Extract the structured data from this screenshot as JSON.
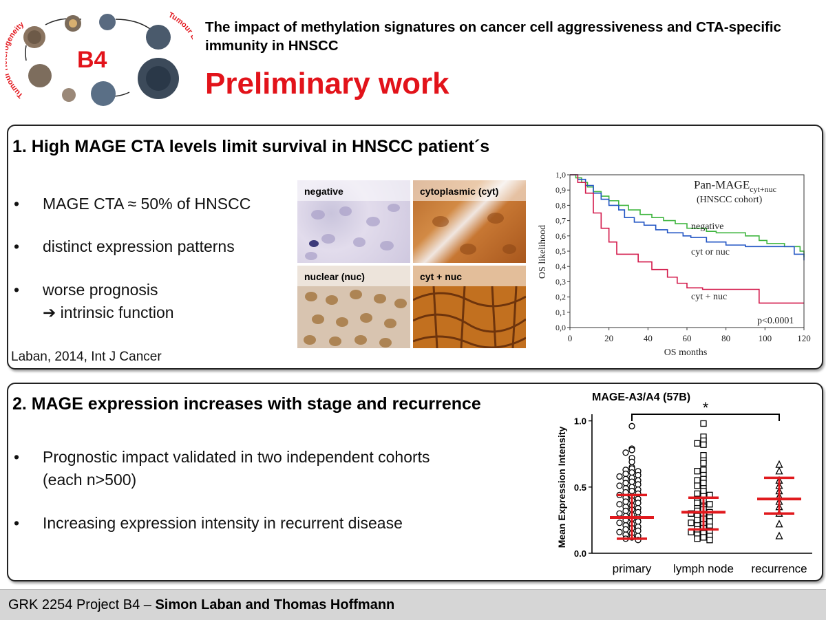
{
  "header": {
    "logo_text": "B4",
    "logo_arc_left": "Tumour Heterogeneity",
    "logo_arc_right": "Tumour Evolution",
    "subtitle": "The impact of methylation signatures on cancer cell aggressiveness and CTA-specific immunity in HNSCC",
    "title": "Preliminary work"
  },
  "section1": {
    "title": "1.  High MAGE CTA levels limit survival in HNSCC patient´s",
    "bullets": [
      "MAGE CTA ≈ 50% of HNSCC",
      "distinct expression patterns",
      "worse prognosis"
    ],
    "bullet_sub": "➔ intrinsic function",
    "bullet_marker": "•",
    "citation": "Laban, 2014, Int J Cancer",
    "ihc_labels": [
      "negative",
      "cytoplasmic (cyt)",
      "nuclear (nuc)",
      "cyt + nuc"
    ]
  },
  "section2": {
    "title": "2.  MAGE expression increases with stage and recurrence",
    "bullets": [
      "Prognostic impact validated in two independent cohorts",
      "Increasing expression intensity in recurrent disease"
    ],
    "bullet1_line2": "(each n>500)",
    "bullet_marker": "•"
  },
  "footer": {
    "project": "GRK 2254 Project B4 – ",
    "authors": "Simon Laban and Thomas Hoffmann"
  },
  "colors": {
    "title_red": "#e2131a",
    "negative": "#3fb53f",
    "cyt_or_nuc": "#2255c4",
    "cyt_nuc": "#d3184a",
    "error_bar": "#e0191d"
  },
  "chart_data": [
    {
      "type": "line",
      "title": "Pan-MAGE",
      "title_subscript": "cyt+nuc",
      "subtitle": "(HNSCC cohort)",
      "xlabel": "OS months",
      "ylabel": "OS likelihood",
      "xlim": [
        0,
        120
      ],
      "ylim": [
        0,
        1
      ],
      "xticks": [
        0,
        20,
        40,
        60,
        80,
        100,
        120
      ],
      "yticks": [
        "0,0",
        "0,1",
        "0,2",
        "0,3",
        "0,4",
        "0,5",
        "0,6",
        "0,7",
        "0,8",
        "0,9",
        "1,0"
      ],
      "annotation": "p<0.0001",
      "series": [
        {
          "name": "negative",
          "color": "#3fb53f",
          "points": [
            [
              0,
              1
            ],
            [
              3,
              0.98
            ],
            [
              6,
              0.95
            ],
            [
              9,
              0.92
            ],
            [
              12,
              0.89
            ],
            [
              16,
              0.86
            ],
            [
              20,
              0.83
            ],
            [
              25,
              0.8
            ],
            [
              30,
              0.77
            ],
            [
              36,
              0.74
            ],
            [
              42,
              0.72
            ],
            [
              48,
              0.7
            ],
            [
              54,
              0.68
            ],
            [
              60,
              0.65
            ],
            [
              70,
              0.63
            ],
            [
              75,
              0.62
            ],
            [
              90,
              0.6
            ],
            [
              97,
              0.57
            ],
            [
              101,
              0.55
            ],
            [
              110,
              0.53
            ],
            [
              118,
              0.5
            ],
            [
              120,
              0.46
            ]
          ]
        },
        {
          "name": "cyt or nuc",
          "color": "#2255c4",
          "points": [
            [
              0,
              1
            ],
            [
              4,
              0.97
            ],
            [
              8,
              0.93
            ],
            [
              12,
              0.88
            ],
            [
              16,
              0.84
            ],
            [
              20,
              0.8
            ],
            [
              25,
              0.77
            ],
            [
              28,
              0.72
            ],
            [
              33,
              0.69
            ],
            [
              38,
              0.67
            ],
            [
              44,
              0.64
            ],
            [
              50,
              0.62
            ],
            [
              58,
              0.6
            ],
            [
              62,
              0.59
            ],
            [
              70,
              0.56
            ],
            [
              80,
              0.54
            ],
            [
              90,
              0.53
            ],
            [
              110,
              0.53
            ],
            [
              115,
              0.48
            ],
            [
              120,
              0.44
            ]
          ]
        },
        {
          "name": "cyt + nuc",
          "color": "#d3184a",
          "points": [
            [
              0,
              1
            ],
            [
              4,
              0.95
            ],
            [
              8,
              0.88
            ],
            [
              12,
              0.75
            ],
            [
              16,
              0.65
            ],
            [
              20,
              0.56
            ],
            [
              24,
              0.48
            ],
            [
              35,
              0.43
            ],
            [
              42,
              0.38
            ],
            [
              50,
              0.33
            ],
            [
              55,
              0.29
            ],
            [
              60,
              0.26
            ],
            [
              68,
              0.25
            ],
            [
              95,
              0.25
            ],
            [
              97,
              0.16
            ],
            [
              120,
              0.16
            ]
          ]
        }
      ]
    },
    {
      "type": "scatter",
      "title": "MAGE-A3/A4  (57B)",
      "ylabel": "Mean Expression Intensity",
      "categories": [
        "primary",
        "lymph node",
        "recurrence"
      ],
      "yticks": [
        "0.0",
        "0.5",
        "1.0"
      ],
      "ylim": [
        0,
        1.05
      ],
      "significance": {
        "from": "primary",
        "to": "recurrence",
        "label": "*"
      },
      "markers": [
        "circle",
        "square",
        "triangle"
      ],
      "series": [
        {
          "name": "primary",
          "mean": 0.27,
          "sd_low": 0.11,
          "sd_high": 0.44,
          "values": [
            0.96,
            0.79,
            0.78,
            0.76,
            0.72,
            0.69,
            0.65,
            0.64,
            0.63,
            0.62,
            0.61,
            0.6,
            0.59,
            0.58,
            0.57,
            0.56,
            0.55,
            0.54,
            0.53,
            0.52,
            0.51,
            0.5,
            0.49,
            0.48,
            0.47,
            0.46,
            0.45,
            0.44,
            0.43,
            0.42,
            0.41,
            0.4,
            0.39,
            0.38,
            0.37,
            0.36,
            0.35,
            0.34,
            0.33,
            0.32,
            0.31,
            0.3,
            0.29,
            0.28,
            0.27,
            0.26,
            0.25,
            0.24,
            0.23,
            0.22,
            0.21,
            0.2,
            0.19,
            0.18,
            0.17,
            0.16,
            0.15,
            0.14,
            0.13,
            0.12,
            0.11,
            0.1
          ]
        },
        {
          "name": "lymph node",
          "mean": 0.31,
          "sd_low": 0.18,
          "sd_high": 0.42,
          "values": [
            0.98,
            0.88,
            0.85,
            0.83,
            0.82,
            0.74,
            0.7,
            0.68,
            0.63,
            0.62,
            0.59,
            0.56,
            0.55,
            0.53,
            0.51,
            0.49,
            0.47,
            0.45,
            0.44,
            0.43,
            0.41,
            0.4,
            0.38,
            0.37,
            0.35,
            0.34,
            0.33,
            0.32,
            0.31,
            0.3,
            0.29,
            0.28,
            0.27,
            0.26,
            0.25,
            0.24,
            0.23,
            0.22,
            0.21,
            0.2,
            0.19,
            0.18,
            0.17,
            0.16,
            0.15,
            0.14,
            0.13,
            0.12,
            0.11,
            0.1
          ]
        },
        {
          "name": "recurrence",
          "mean": 0.41,
          "sd_low": 0.3,
          "sd_high": 0.57,
          "values": [
            0.67,
            0.62,
            0.55,
            0.51,
            0.47,
            0.43,
            0.39,
            0.35,
            0.3,
            0.22,
            0.13
          ]
        }
      ]
    }
  ]
}
